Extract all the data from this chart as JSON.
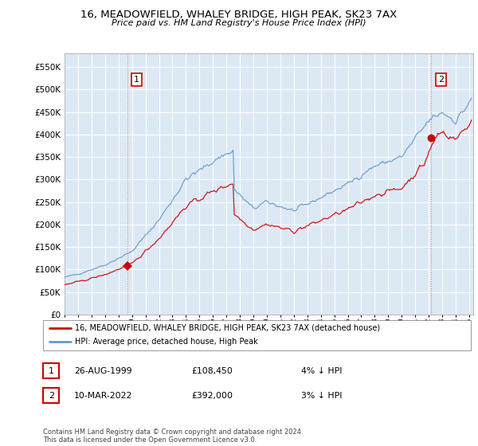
{
  "title": "16, MEADOWFIELD, WHALEY BRIDGE, HIGH PEAK, SK23 7AX",
  "subtitle": "Price paid vs. HM Land Registry's House Price Index (HPI)",
  "legend_line1": "16, MEADOWFIELD, WHALEY BRIDGE, HIGH PEAK, SK23 7AX (detached house)",
  "legend_line2": "HPI: Average price, detached house, High Peak",
  "sale1_date": "26-AUG-1999",
  "sale1_price": "£108,450",
  "sale1_hpi": "4% ↓ HPI",
  "sale2_date": "10-MAR-2022",
  "sale2_price": "£392,000",
  "sale2_hpi": "3% ↓ HPI",
  "footnote": "Contains HM Land Registry data © Crown copyright and database right 2024.\nThis data is licensed under the Open Government Licence v3.0.",
  "hpi_color": "#6699cc",
  "price_color": "#cc0000",
  "marker_color": "#cc0000",
  "dashed_line_color": "#e08080",
  "background_color": "#ffffff",
  "plot_bg_color": "#dce9f5",
  "grid_color": "#ffffff",
  "ylim": [
    0,
    580000
  ],
  "yticks": [
    0,
    50000,
    100000,
    150000,
    200000,
    250000,
    300000,
    350000,
    400000,
    450000,
    500000,
    550000
  ],
  "sale1_x": 1999.65,
  "sale1_y": 108450,
  "sale2_x": 2022.19,
  "sale2_y": 392000,
  "xmin": 1995.0,
  "xmax": 2025.3
}
